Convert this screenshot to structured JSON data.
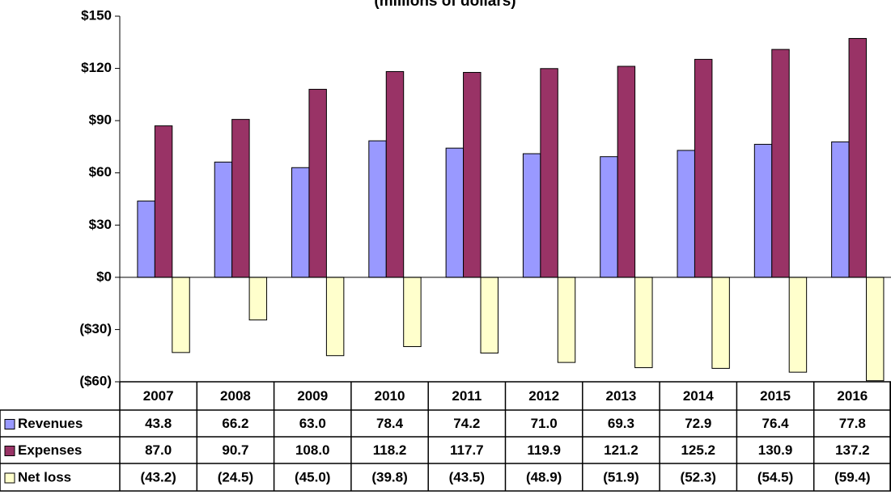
{
  "chart_data": {
    "type": "bar",
    "title": "(millions of dollars)",
    "categories": [
      "2007",
      "2008",
      "2009",
      "2010",
      "2011",
      "2012",
      "2013",
      "2014",
      "2015",
      "2016"
    ],
    "series": [
      {
        "name": "Revenues",
        "color": "#9999ff",
        "values": [
          43.8,
          66.2,
          63.0,
          78.4,
          74.2,
          71.0,
          69.3,
          72.9,
          76.4,
          77.8
        ],
        "value_labels": [
          "43.8",
          "66.2",
          "63.0",
          "78.4",
          "74.2",
          "71.0",
          "69.3",
          "72.9",
          "76.4",
          "77.8"
        ]
      },
      {
        "name": "Expenses",
        "color": "#993366",
        "values": [
          87.0,
          90.7,
          108.0,
          118.2,
          117.7,
          119.9,
          121.2,
          125.2,
          130.9,
          137.2
        ],
        "value_labels": [
          "87.0",
          "90.7",
          "108.0",
          "118.2",
          "117.7",
          "119.9",
          "121.2",
          "125.2",
          "130.9",
          "137.2"
        ]
      },
      {
        "name": "Net loss",
        "color": "#ffffcc",
        "values": [
          -43.2,
          -24.5,
          -45.0,
          -39.8,
          -43.5,
          -48.9,
          -51.9,
          -52.3,
          -54.5,
          -59.4
        ],
        "value_labels": [
          "(43.2)",
          "(24.5)",
          "(45.0)",
          "(39.8)",
          "(43.5)",
          "(48.9)",
          "(51.9)",
          "(52.3)",
          "(54.5)",
          "(59.4)"
        ]
      }
    ],
    "ylim": [
      -60,
      150
    ],
    "yticks": [
      {
        "value": -60,
        "label": "($60)"
      },
      {
        "value": -30,
        "label": "($30)"
      },
      {
        "value": 0,
        "label": "$0"
      },
      {
        "value": 30,
        "label": "$30"
      },
      {
        "value": 60,
        "label": "$60"
      },
      {
        "value": 90,
        "label": "$90"
      },
      {
        "value": 120,
        "label": "$120"
      },
      {
        "value": 150,
        "label": "$150"
      }
    ],
    "grid": false
  }
}
